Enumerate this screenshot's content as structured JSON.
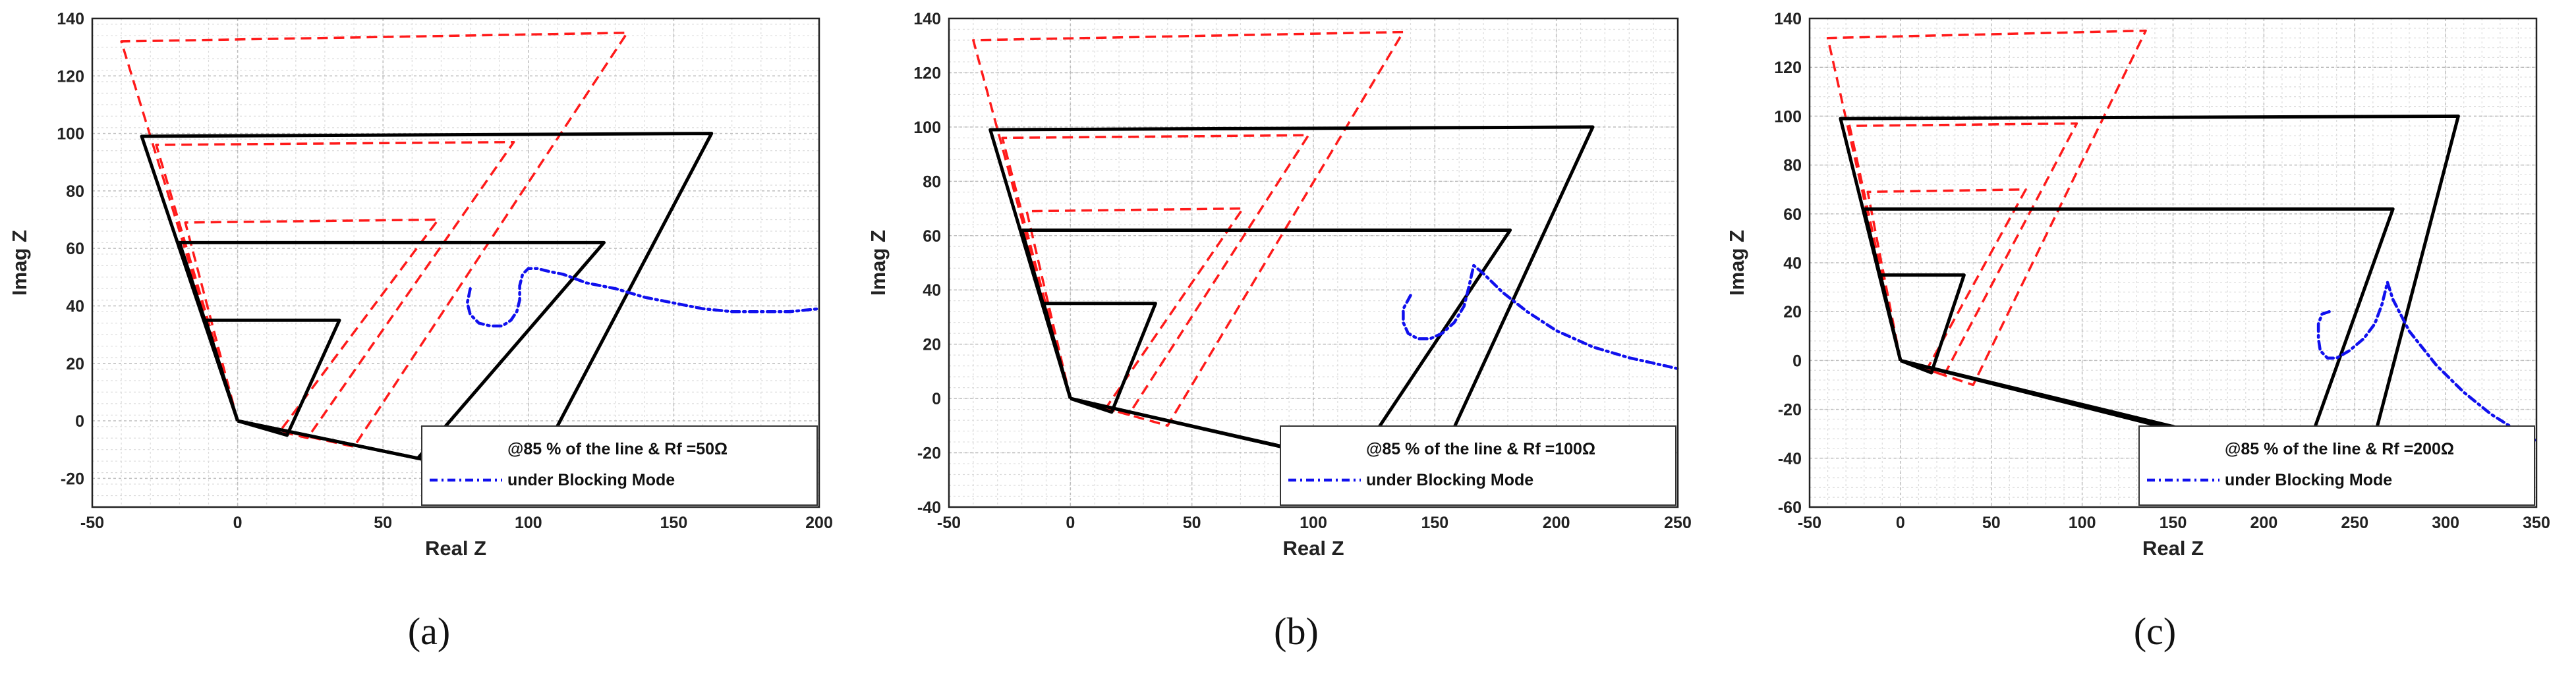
{
  "chart_data": [
    {
      "type": "line",
      "panel_label": "(a)",
      "xlabel": "Real Z",
      "ylabel": "Imag Z",
      "xlim": [
        -50,
        200
      ],
      "ylim": [
        -30,
        140
      ],
      "xticks": [
        -50,
        0,
        50,
        100,
        150,
        200
      ],
      "yticks": [
        -20,
        0,
        20,
        40,
        60,
        80,
        100,
        120,
        140
      ],
      "grid": true,
      "legend": {
        "line1": "@85 % of the line & Rf =50Ω",
        "line2": "under Blocking Mode",
        "placement": "bottom-right"
      },
      "zones_black": [
        [
          [
            0,
            0
          ],
          [
            -33,
            99
          ],
          [
            163,
            100
          ],
          [
            100,
            -21
          ],
          [
            0,
            0
          ]
        ],
        [
          [
            0,
            0
          ],
          [
            -20,
            62
          ],
          [
            126,
            62
          ],
          [
            62,
            -13
          ],
          [
            0,
            0
          ]
        ],
        [
          [
            0,
            0
          ],
          [
            -11,
            35
          ],
          [
            35,
            35
          ],
          [
            17,
            -5
          ],
          [
            0,
            0
          ]
        ]
      ],
      "zones_red": [
        [
          [
            0,
            0
          ],
          [
            -40,
            132
          ],
          [
            134,
            135
          ],
          [
            40,
            -9
          ],
          [
            0,
            0
          ]
        ],
        [
          [
            0,
            0
          ],
          [
            -28,
            96
          ],
          [
            95,
            97
          ],
          [
            24,
            -6
          ],
          [
            0,
            0
          ]
        ],
        [
          [
            0,
            0
          ],
          [
            -18,
            69
          ],
          [
            69,
            70
          ],
          [
            15,
            -3
          ],
          [
            0,
            0
          ]
        ]
      ],
      "trajectory": {
        "x": [
          80,
          79,
          80,
          83,
          87,
          91,
          94,
          96,
          97,
          97,
          98,
          100,
          103,
          107,
          112,
          120,
          130,
          140,
          150,
          160,
          170,
          180,
          190,
          200
        ],
        "y": [
          46,
          41,
          37,
          34,
          33,
          33,
          35,
          38,
          42,
          47,
          51,
          53,
          53,
          52,
          51,
          48,
          46,
          43,
          41,
          39,
          38,
          38,
          38,
          39
        ]
      }
    },
    {
      "type": "line",
      "panel_label": "(b)",
      "xlabel": "Real Z",
      "ylabel": "Imag Z",
      "xlim": [
        -50,
        250
      ],
      "ylim": [
        -40,
        140
      ],
      "xticks": [
        -50,
        0,
        50,
        100,
        150,
        200,
        250
      ],
      "yticks": [
        -40,
        -20,
        0,
        20,
        40,
        60,
        80,
        100,
        120,
        140
      ],
      "grid": true,
      "legend": {
        "line1": "@85 % of the line & Rf =100Ω",
        "line2": "under Blocking Mode",
        "placement": "bottom-right"
      },
      "zones_black": [
        [
          [
            0,
            0
          ],
          [
            -33,
            99
          ],
          [
            215,
            100
          ],
          [
            148,
            -30
          ],
          [
            0,
            0
          ]
        ],
        [
          [
            0,
            0
          ],
          [
            -20,
            62
          ],
          [
            181,
            62
          ],
          [
            117,
            -24
          ],
          [
            0,
            0
          ]
        ],
        [
          [
            0,
            0
          ],
          [
            -11,
            35
          ],
          [
            35,
            35
          ],
          [
            17,
            -5
          ],
          [
            0,
            0
          ]
        ]
      ],
      "zones_red": [
        [
          [
            0,
            0
          ],
          [
            -40,
            132
          ],
          [
            137,
            135
          ],
          [
            40,
            -10
          ],
          [
            0,
            0
          ]
        ],
        [
          [
            0,
            0
          ],
          [
            -28,
            96
          ],
          [
            98,
            97
          ],
          [
            24,
            -6
          ],
          [
            0,
            0
          ]
        ],
        [
          [
            0,
            0
          ],
          [
            -18,
            69
          ],
          [
            71,
            70
          ],
          [
            15,
            -3
          ],
          [
            0,
            0
          ]
        ]
      ],
      "trajectory": {
        "x": [
          140,
          137,
          137,
          139,
          143,
          148,
          153,
          158,
          162,
          164,
          166,
          170,
          178,
          188,
          200,
          215,
          230,
          245,
          250
        ],
        "y": [
          38,
          33,
          28,
          24,
          22,
          22,
          24,
          28,
          34,
          41,
          49,
          46,
          39,
          32,
          25,
          19,
          15,
          12,
          11
        ]
      }
    },
    {
      "type": "line",
      "panel_label": "(c)",
      "xlabel": "Real Z",
      "ylabel": "Imag Z",
      "xlim": [
        -50,
        350
      ],
      "ylim": [
        -60,
        140
      ],
      "xticks": [
        -50,
        0,
        50,
        100,
        150,
        200,
        250,
        300,
        350
      ],
      "yticks": [
        -60,
        -40,
        -20,
        0,
        20,
        40,
        60,
        80,
        100,
        120,
        140
      ],
      "grid": true,
      "legend": {
        "line1": "@85 % of the line & Rf =200Ω",
        "line2": "under Blocking Mode",
        "placement": "bottom-right"
      },
      "zones_black": [
        [
          [
            0,
            0
          ],
          [
            -33,
            99
          ],
          [
            307,
            100
          ],
          [
            255,
            -48
          ],
          [
            0,
            0
          ]
        ],
        [
          [
            0,
            0
          ],
          [
            -20,
            62
          ],
          [
            271,
            62
          ],
          [
            222,
            -40
          ],
          [
            0,
            0
          ]
        ],
        [
          [
            0,
            0
          ],
          [
            -11,
            35
          ],
          [
            35,
            35
          ],
          [
            17,
            -5
          ],
          [
            0,
            0
          ]
        ]
      ],
      "zones_red": [
        [
          [
            0,
            0
          ],
          [
            -40,
            132
          ],
          [
            135,
            135
          ],
          [
            40,
            -10
          ],
          [
            0,
            0
          ]
        ],
        [
          [
            0,
            0
          ],
          [
            -28,
            96
          ],
          [
            97,
            97
          ],
          [
            24,
            -6
          ],
          [
            0,
            0
          ]
        ],
        [
          [
            0,
            0
          ],
          [
            -18,
            69
          ],
          [
            69,
            70
          ],
          [
            15,
            -3
          ],
          [
            0,
            0
          ]
        ]
      ],
      "trajectory": {
        "x": [
          236,
          232,
          230,
          230,
          231,
          235,
          240,
          247,
          255,
          261,
          265,
          268,
          271,
          280,
          295,
          310,
          325,
          340,
          350
        ],
        "y": [
          20,
          19,
          15,
          9,
          4,
          1,
          1,
          4,
          9,
          15,
          23,
          32,
          25,
          12,
          -2,
          -13,
          -22,
          -29,
          -33
        ]
      }
    }
  ]
}
